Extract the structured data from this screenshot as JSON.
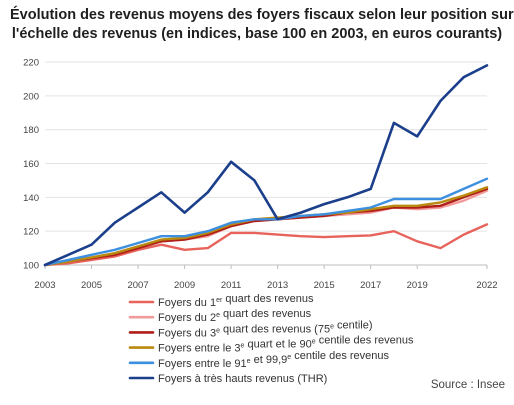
{
  "chart_data": {
    "type": "line",
    "title": "Évolution des revenus moyens des foyers fiscaux selon leur position sur l'échelle des revenus (en indices, base 100 en 2003, en euros courants)",
    "title_lines": [
      "Évolution des revenus moyens des foyers fiscaux selon leur position sur",
      "l'échelle des revenus (en indices, base 100 en 2003, en euros courants)"
    ],
    "xlabel": "",
    "ylabel": "",
    "xlim": [
      2003,
      2022
    ],
    "ylim": [
      100,
      220
    ],
    "x_ticks": [
      2003,
      2005,
      2007,
      2009,
      2011,
      2013,
      2015,
      2017,
      2019,
      2022
    ],
    "y_ticks": [
      100,
      120,
      140,
      160,
      180,
      200,
      220
    ],
    "grid": "horizontal",
    "legend_position": "bottom",
    "source": "Source : Insee",
    "x": [
      2003,
      2004,
      2005,
      2006,
      2007,
      2008,
      2009,
      2010,
      2011,
      2012,
      2013,
      2014,
      2015,
      2016,
      2017,
      2018,
      2019,
      2020,
      2021,
      2022
    ],
    "series": [
      {
        "name": "Foyers du 1er quart des revenus",
        "legend_parts": [
          [
            "Foyers du 1",
            ""
          ],
          [
            "er",
            "sup"
          ],
          [
            " quart des revenus",
            ""
          ]
        ],
        "color": "#e8635c",
        "values": [
          100,
          101,
          103,
          105,
          109,
          112,
          109,
          110,
          119,
          119,
          118,
          117,
          116.5,
          117,
          117.5,
          120,
          114,
          110,
          118,
          124
        ]
      },
      {
        "name": "Foyers du 2e quart des revenus",
        "legend_parts": [
          [
            "Foyers du 2",
            ""
          ],
          [
            "e",
            "sup"
          ],
          [
            " quart des revenus",
            ""
          ]
        ],
        "color": "#f29a99",
        "values": [
          100,
          102,
          104,
          107,
          111,
          114,
          115,
          117,
          123,
          126,
          127,
          128,
          129,
          130,
          131,
          134,
          133,
          134,
          138,
          144
        ]
      },
      {
        "name": "Foyers du 3e quart des revenus (75e centile)",
        "legend_parts": [
          [
            "Foyers du 3",
            ""
          ],
          [
            "e",
            "sup"
          ],
          [
            " quart des revenus (75",
            ""
          ],
          [
            "e",
            "sup"
          ],
          [
            " centile)",
            ""
          ]
        ],
        "color": "#b01f17",
        "values": [
          100,
          102,
          104,
          106,
          110,
          114,
          115,
          118,
          123,
          126,
          127,
          128,
          129,
          131,
          132,
          134,
          134,
          135,
          140,
          145
        ]
      },
      {
        "name": "Foyers entre le 3e quart et le 90e centile des revenus",
        "legend_parts": [
          [
            "Foyers entre le 3",
            ""
          ],
          [
            "e",
            "sup"
          ],
          [
            " quart et le 90",
            ""
          ],
          [
            "e",
            "sup"
          ],
          [
            " centile des revenus",
            ""
          ]
        ],
        "color": "#b88a10",
        "values": [
          100,
          102,
          104.5,
          107,
          111,
          115,
          116,
          119,
          124,
          127,
          128,
          129,
          130,
          131,
          133,
          135,
          135,
          137,
          141,
          146
        ]
      },
      {
        "name": "Foyers entre le 91e et 99,9e centile des revenus",
        "legend_parts": [
          [
            "Foyers entre le 91",
            ""
          ],
          [
            "e",
            "sup"
          ],
          [
            " et 99,9",
            ""
          ],
          [
            "e",
            "sup"
          ],
          [
            " centile des revenus",
            ""
          ]
        ],
        "color": "#3d8fe0",
        "values": [
          100,
          103,
          106,
          109,
          113,
          117,
          117,
          120,
          125,
          127,
          127,
          129,
          130,
          132,
          134,
          139,
          139,
          139,
          145,
          151
        ]
      },
      {
        "name": "Foyers à très hauts revenus (THR)",
        "legend_parts": [
          [
            "Foyers à très hauts revenus (THR)",
            ""
          ]
        ],
        "color": "#1b3f8b",
        "values": [
          100,
          106,
          112,
          125,
          134,
          143,
          131,
          143,
          161,
          150,
          127,
          131,
          136,
          140,
          145,
          184,
          176,
          197,
          211,
          218
        ]
      }
    ]
  }
}
